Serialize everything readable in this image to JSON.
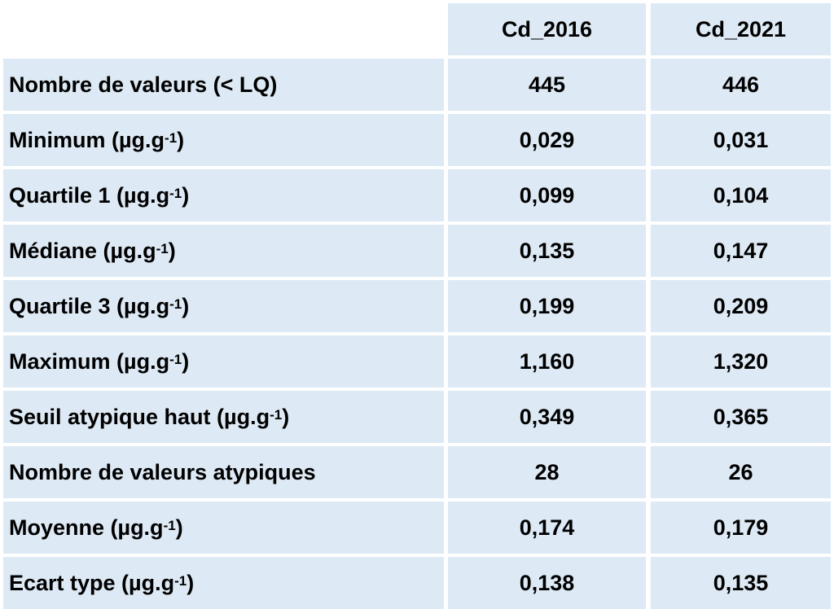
{
  "table": {
    "columns": [
      "",
      "Cd_2016",
      "Cd_2021"
    ],
    "rows": [
      {
        "label": "Nombre de valeurs (< LQ)",
        "unit_sup": "",
        "close": "",
        "v2016": "445",
        "v2021": "446"
      },
      {
        "label": "Minimum (µg.g",
        "unit_sup": "-1",
        "close": ")",
        "v2016": "0,029",
        "v2021": "0,031"
      },
      {
        "label": "Quartile 1 (µg.g",
        "unit_sup": "-1",
        "close": ")",
        "v2016": "0,099",
        "v2021": "0,104"
      },
      {
        "label": "Médiane (µg.g",
        "unit_sup": "-1",
        "close": ")",
        "v2016": "0,135",
        "v2021": "0,147"
      },
      {
        "label": "Quartile 3 (µg.g",
        "unit_sup": "-1",
        "close": ")",
        "v2016": "0,199",
        "v2021": "0,209"
      },
      {
        "label": "Maximum (µg.g",
        "unit_sup": "-1",
        "close": ")",
        "v2016": "1,160",
        "v2021": "1,320"
      },
      {
        "label": "Seuil atypique haut (µg.g",
        "unit_sup": "-1",
        "close": ")",
        "v2016": "0,349",
        "v2021": "0,365"
      },
      {
        "label": "Nombre de valeurs atypiques",
        "unit_sup": "",
        "close": "",
        "v2016": "28",
        "v2021": "26"
      },
      {
        "label": "Moyenne (µg.g",
        "unit_sup": "-1",
        "close": ")",
        "v2016": "0,174",
        "v2021": "0,179"
      },
      {
        "label": "Ecart type (µg.g",
        "unit_sup": "-1",
        "close": ")",
        "v2016": "0,138",
        "v2021": "0,135"
      }
    ]
  },
  "colors": {
    "cell_fill": "#dde9f4",
    "text": "#000000",
    "background": "#ffffff"
  }
}
